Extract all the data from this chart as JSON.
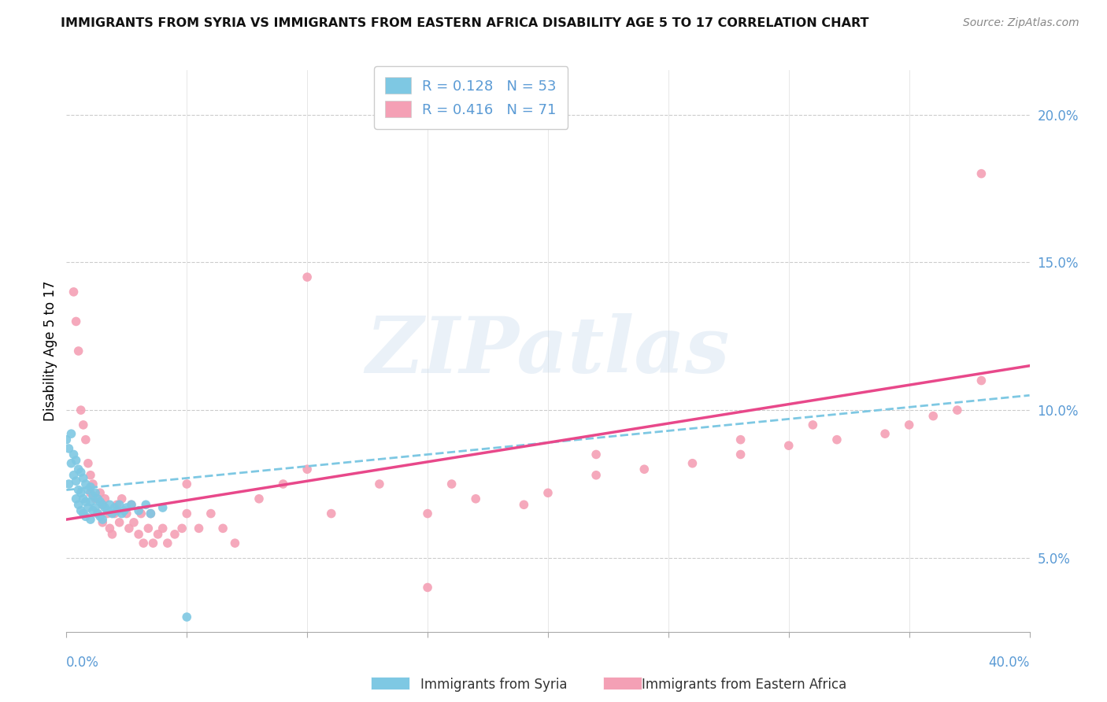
{
  "title": "IMMIGRANTS FROM SYRIA VS IMMIGRANTS FROM EASTERN AFRICA DISABILITY AGE 5 TO 17 CORRELATION CHART",
  "source": "Source: ZipAtlas.com",
  "ylabel": "Disability Age 5 to 17",
  "xlim": [
    0.0,
    0.4
  ],
  "ylim": [
    0.025,
    0.215
  ],
  "yticks": [
    0.05,
    0.1,
    0.15,
    0.2
  ],
  "ytick_labels": [
    "5.0%",
    "10.0%",
    "15.0%",
    "20.0%"
  ],
  "xticks": [
    0.0,
    0.05,
    0.1,
    0.15,
    0.2,
    0.25,
    0.3,
    0.35,
    0.4
  ],
  "syria_color": "#7ec8e3",
  "eastern_africa_color": "#f4a0b5",
  "ea_line_color": "#e8488a",
  "syria_R": 0.128,
  "syria_N": 53,
  "eastern_africa_R": 0.416,
  "eastern_africa_N": 71,
  "watermark": "ZIPatlas",
  "syria_points_x": [
    0.0,
    0.001,
    0.001,
    0.002,
    0.002,
    0.003,
    0.003,
    0.004,
    0.004,
    0.004,
    0.005,
    0.005,
    0.005,
    0.006,
    0.006,
    0.006,
    0.007,
    0.007,
    0.007,
    0.008,
    0.008,
    0.008,
    0.009,
    0.009,
    0.01,
    0.01,
    0.01,
    0.011,
    0.011,
    0.012,
    0.012,
    0.013,
    0.013,
    0.014,
    0.014,
    0.015,
    0.015,
    0.016,
    0.017,
    0.018,
    0.019,
    0.02,
    0.021,
    0.022,
    0.023,
    0.024,
    0.025,
    0.027,
    0.03,
    0.033,
    0.035,
    0.04,
    0.05
  ],
  "syria_points_y": [
    0.09,
    0.087,
    0.075,
    0.092,
    0.082,
    0.085,
    0.078,
    0.083,
    0.076,
    0.07,
    0.08,
    0.073,
    0.068,
    0.079,
    0.072,
    0.066,
    0.077,
    0.07,
    0.065,
    0.075,
    0.069,
    0.064,
    0.073,
    0.067,
    0.074,
    0.069,
    0.063,
    0.071,
    0.066,
    0.072,
    0.067,
    0.07,
    0.065,
    0.069,
    0.064,
    0.068,
    0.063,
    0.067,
    0.066,
    0.068,
    0.065,
    0.067,
    0.066,
    0.068,
    0.065,
    0.066,
    0.067,
    0.068,
    0.066,
    0.068,
    0.065,
    0.067,
    0.03
  ],
  "eastern_africa_points_x": [
    0.003,
    0.004,
    0.005,
    0.006,
    0.007,
    0.008,
    0.009,
    0.01,
    0.01,
    0.011,
    0.012,
    0.013,
    0.014,
    0.015,
    0.015,
    0.016,
    0.017,
    0.018,
    0.019,
    0.02,
    0.021,
    0.022,
    0.023,
    0.025,
    0.026,
    0.027,
    0.028,
    0.03,
    0.031,
    0.032,
    0.034,
    0.035,
    0.036,
    0.038,
    0.04,
    0.042,
    0.045,
    0.048,
    0.05,
    0.055,
    0.06,
    0.065,
    0.07,
    0.08,
    0.09,
    0.1,
    0.11,
    0.13,
    0.15,
    0.16,
    0.17,
    0.19,
    0.2,
    0.22,
    0.24,
    0.26,
    0.28,
    0.3,
    0.32,
    0.34,
    0.35,
    0.36,
    0.37,
    0.38,
    0.31,
    0.15,
    0.22,
    0.28,
    0.1,
    0.05,
    0.38
  ],
  "eastern_africa_points_y": [
    0.14,
    0.13,
    0.12,
    0.1,
    0.095,
    0.09,
    0.082,
    0.078,
    0.072,
    0.075,
    0.07,
    0.065,
    0.072,
    0.068,
    0.062,
    0.07,
    0.065,
    0.06,
    0.058,
    0.065,
    0.068,
    0.062,
    0.07,
    0.065,
    0.06,
    0.068,
    0.062,
    0.058,
    0.065,
    0.055,
    0.06,
    0.065,
    0.055,
    0.058,
    0.06,
    0.055,
    0.058,
    0.06,
    0.065,
    0.06,
    0.065,
    0.06,
    0.055,
    0.07,
    0.075,
    0.08,
    0.065,
    0.075,
    0.065,
    0.075,
    0.07,
    0.068,
    0.072,
    0.078,
    0.08,
    0.082,
    0.085,
    0.088,
    0.09,
    0.092,
    0.095,
    0.098,
    0.1,
    0.18,
    0.095,
    0.04,
    0.085,
    0.09,
    0.145,
    0.075,
    0.11
  ]
}
